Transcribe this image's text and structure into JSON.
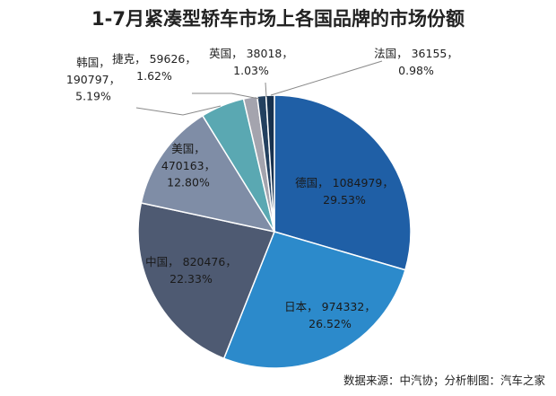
{
  "chart_data": {
    "type": "pie",
    "title": "1-7月紧凑型轿车市场上各国品牌的市场份额",
    "source": "数据来源：中汽协；分析制图：汽车之家",
    "slices": [
      {
        "name": "德国",
        "value": 1084979,
        "percent": "29.53%",
        "value_text": "1084979",
        "color": "#1F5FA6"
      },
      {
        "name": "日本",
        "value": 974332,
        "percent": "26.52%",
        "value_text": "974332",
        "color": "#2C8ACB"
      },
      {
        "name": "中国",
        "value": 820476,
        "percent": "22.33%",
        "value_text": "820476",
        "color": "#4E5A72"
      },
      {
        "name": "美国",
        "value": 470163,
        "percent": "12.80%",
        "value_text": "470163",
        "color": "#7F8DA6"
      },
      {
        "name": "韩国",
        "value": 190797,
        "percent": "5.19%",
        "value_text": "190797",
        "color": "#5AA8B2"
      },
      {
        "name": "捷克",
        "value": 59626,
        "percent": "1.62%",
        "value_text": "59626",
        "color": "#A4A4AE"
      },
      {
        "name": "英国",
        "value": 38018,
        "percent": "1.03%",
        "value_text": "38018",
        "color": "#23405F"
      },
      {
        "name": "法国",
        "value": 36155,
        "percent": "0.98%",
        "value_text": "36155",
        "color": "#17314E"
      }
    ]
  }
}
